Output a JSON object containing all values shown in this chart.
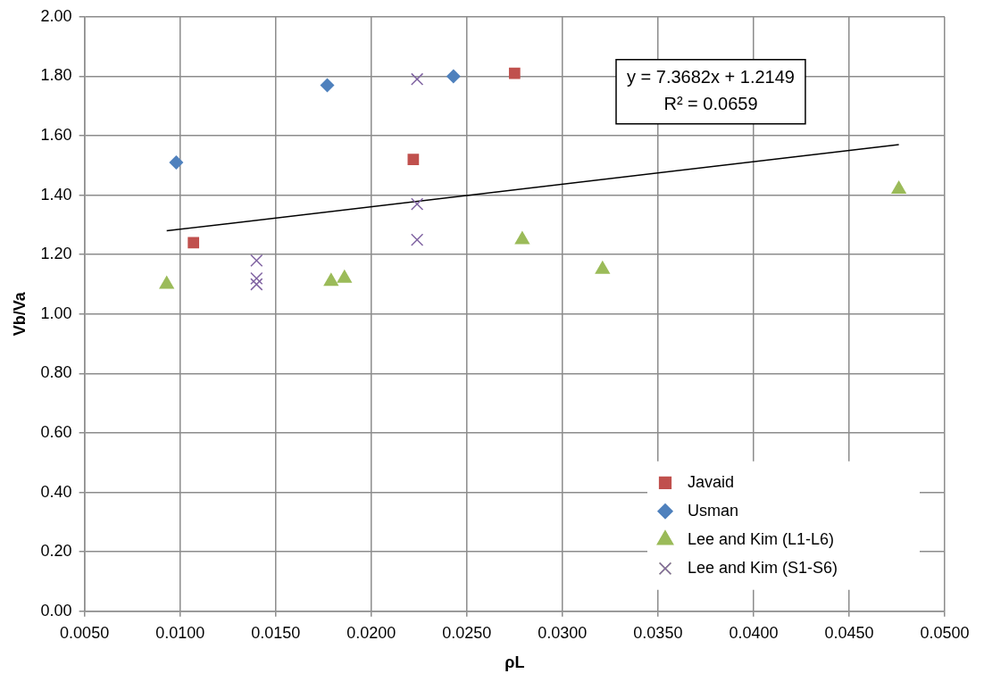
{
  "chart_data": {
    "type": "scatter",
    "xlabel": "ρL",
    "ylabel": "Vb/Va",
    "xlim": [
      0.005,
      0.05
    ],
    "ylim": [
      0,
      2
    ],
    "xticks": [
      {
        "value": 0.005,
        "label": "0.0050"
      },
      {
        "value": 0.01,
        "label": "0.0100"
      },
      {
        "value": 0.015,
        "label": "0.0150"
      },
      {
        "value": 0.02,
        "label": "0.0200"
      },
      {
        "value": 0.025,
        "label": "0.0250"
      },
      {
        "value": 0.03,
        "label": "0.0300"
      },
      {
        "value": 0.035,
        "label": "0.0350"
      },
      {
        "value": 0.04,
        "label": "0.0400"
      },
      {
        "value": 0.045,
        "label": "0.0450"
      },
      {
        "value": 0.05,
        "label": "0.0500"
      }
    ],
    "yticks": [
      {
        "value": 0,
        "label": "0.00"
      },
      {
        "value": 0.2,
        "label": "0.20"
      },
      {
        "value": 0.4,
        "label": "0.40"
      },
      {
        "value": 0.6,
        "label": "0.60"
      },
      {
        "value": 0.8,
        "label": "0.80"
      },
      {
        "value": 1,
        "label": "1.00"
      },
      {
        "value": 1.2,
        "label": "1.20"
      },
      {
        "value": 1.4,
        "label": "1.40"
      },
      {
        "value": 1.6,
        "label": "1.60"
      },
      {
        "value": 1.8,
        "label": "1.80"
      },
      {
        "value": 2,
        "label": "2.00"
      }
    ],
    "grid": true,
    "legend": "bottom right",
    "annotations": [
      "y = 7.3682x + 1.2149",
      "R² = 0.0659"
    ],
    "series": [
      {
        "name": "Javaid",
        "color": "#c0504d",
        "marker": "square",
        "x": [
          0.0107,
          0.0222,
          0.0275
        ],
        "values": [
          1.24,
          1.52,
          1.81
        ]
      },
      {
        "name": "Usman",
        "color": "#4f81bd",
        "marker": "diamond",
        "x": [
          0.0098,
          0.0177,
          0.0243
        ],
        "values": [
          1.51,
          1.77,
          1.8
        ]
      },
      {
        "name": "Lee and Kim (L1-L6)",
        "color": "#9bbb59",
        "marker": "triangle",
        "x": [
          0.0093,
          0.0179,
          0.0186,
          0.0279,
          0.0321,
          0.0476
        ],
        "values": [
          1.1,
          1.11,
          1.12,
          1.25,
          1.15,
          1.42
        ]
      },
      {
        "name": "Lee and Kim (S1-S6)",
        "color": "#8064a2",
        "marker": "cross",
        "x": [
          0.014,
          0.014,
          0.014,
          0.0224,
          0.0224,
          0.0224
        ],
        "values": [
          1.18,
          1.12,
          1.1,
          1.79,
          1.37,
          1.25
        ]
      },
      {
        "type": "line",
        "color": "#000000",
        "marker": "none",
        "x": [
          0.0093,
          0.0476
        ],
        "values": [
          1.28,
          1.57
        ]
      }
    ]
  }
}
